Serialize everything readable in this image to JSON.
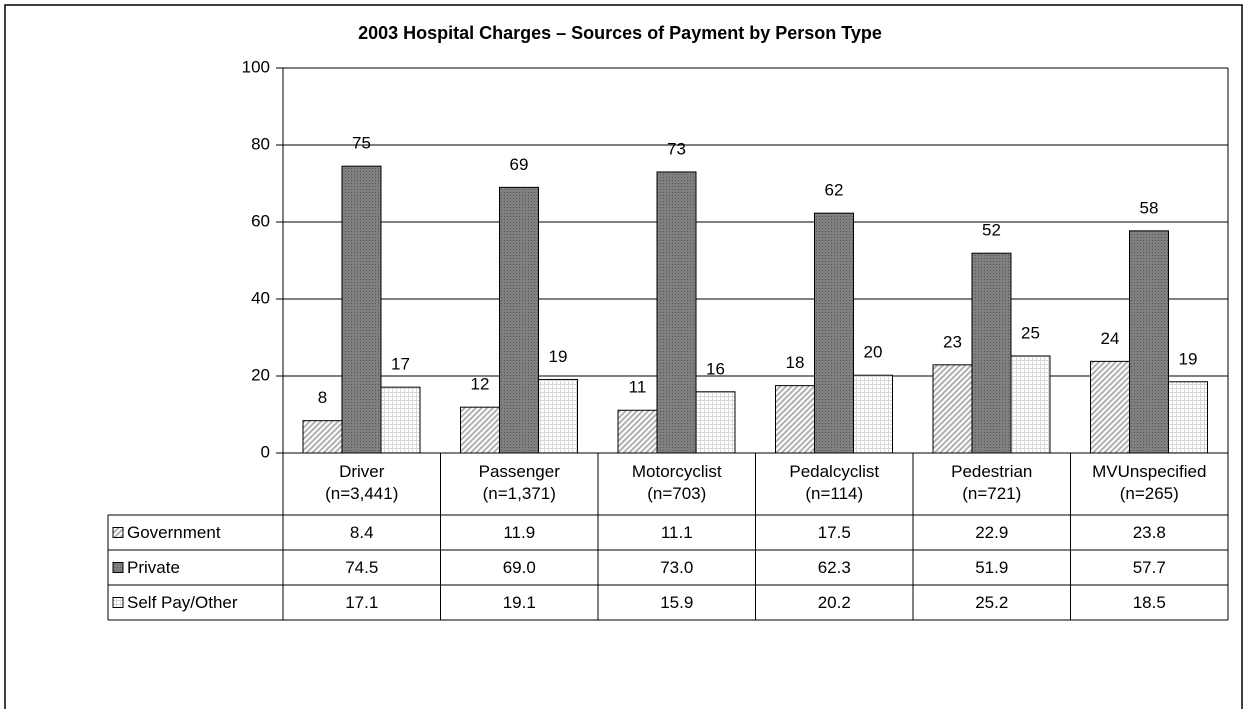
{
  "chart_data": {
    "type": "bar",
    "title": "2003 Hospital Charges – Sources of Payment by Person Type",
    "categories": [
      "Driver\n(n=3,441)",
      "Passenger\n(n=1,371)",
      "Motorcyclist\n(n=703)",
      "Pedalcyclist\n(n=114)",
      "Pedestrian\n(n=721)",
      "MVUnspecified\n(n=265)"
    ],
    "series": [
      {
        "name": "Government",
        "color": "#b0b0b0",
        "values": [
          8.4,
          11.9,
          11.1,
          17.5,
          22.9,
          23.8
        ],
        "value_labels": [
          "8",
          "12",
          "11",
          "18",
          "23",
          "24"
        ],
        "table_values": [
          "8.4",
          "11.9",
          "11.1",
          "17.5",
          "22.9",
          "23.8"
        ]
      },
      {
        "name": "Private",
        "color": "#808080",
        "values": [
          74.5,
          69.0,
          73.0,
          62.3,
          51.9,
          57.7
        ],
        "value_labels": [
          "75",
          "69",
          "73",
          "62",
          "52",
          "58"
        ],
        "table_values": [
          "74.5",
          "69.0",
          "73.0",
          "62.3",
          "51.9",
          "57.7"
        ]
      },
      {
        "name": "Self Pay/Other",
        "color": "#d8d8d8",
        "values": [
          17.1,
          19.1,
          15.9,
          20.2,
          25.2,
          18.5
        ],
        "value_labels": [
          "17",
          "19",
          "16",
          "20",
          "25",
          "19"
        ],
        "table_values": [
          "17.1",
          "19.1",
          "15.9",
          "20.2",
          "25.2",
          "18.5"
        ]
      }
    ],
    "ylim": [
      0,
      100
    ],
    "yticks": [
      0,
      20,
      40,
      60,
      80,
      100
    ],
    "grid": true
  }
}
